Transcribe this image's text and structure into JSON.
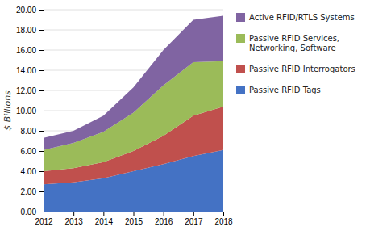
{
  "chart_data": {
    "type": "area",
    "stacked": true,
    "x": [
      2012,
      2013,
      2014,
      2015,
      2016,
      2017,
      2018
    ],
    "xlim": [
      2012,
      2018
    ],
    "xticks": [
      2012,
      2013,
      2014,
      2015,
      2016,
      2017,
      2018
    ],
    "ylabel": "$ Billions",
    "ylim": [
      0,
      20
    ],
    "yticks": [
      {
        "value": 0,
        "label": "0.00"
      },
      {
        "value": 2,
        "label": "2.00"
      },
      {
        "value": 4,
        "label": "4.00"
      },
      {
        "value": 6,
        "label": "6.00"
      },
      {
        "value": 8,
        "label": "8.00"
      },
      {
        "value": 10,
        "label": "10.00"
      },
      {
        "value": 12,
        "label": "12.00"
      },
      {
        "value": 14,
        "label": "14.00"
      },
      {
        "value": 16,
        "label": "16.00"
      },
      {
        "value": 18,
        "label": "18.00"
      },
      {
        "value": 20,
        "label": "20.00"
      }
    ],
    "grid": true,
    "legend": "right",
    "series": [
      {
        "name": "Passive RFID Tags",
        "color": "#4472c4",
        "values": [
          2.7,
          2.9,
          3.3,
          4.0,
          4.7,
          5.5,
          6.1
        ]
      },
      {
        "name": "Passive RFID Interrogators",
        "color": "#c0504d",
        "values": [
          1.3,
          1.4,
          1.6,
          2.0,
          2.8,
          4.0,
          4.3
        ]
      },
      {
        "name": "Passive RFID Services,\nNetworking, Software",
        "color": "#9bbb59",
        "values": [
          2.1,
          2.5,
          3.0,
          3.8,
          5.0,
          5.3,
          4.5
        ]
      },
      {
        "name": "Active RFID/RTLS Systems",
        "color": "#8064a2",
        "values": [
          1.2,
          1.2,
          1.6,
          2.5,
          3.5,
          4.2,
          4.5
        ]
      }
    ]
  }
}
